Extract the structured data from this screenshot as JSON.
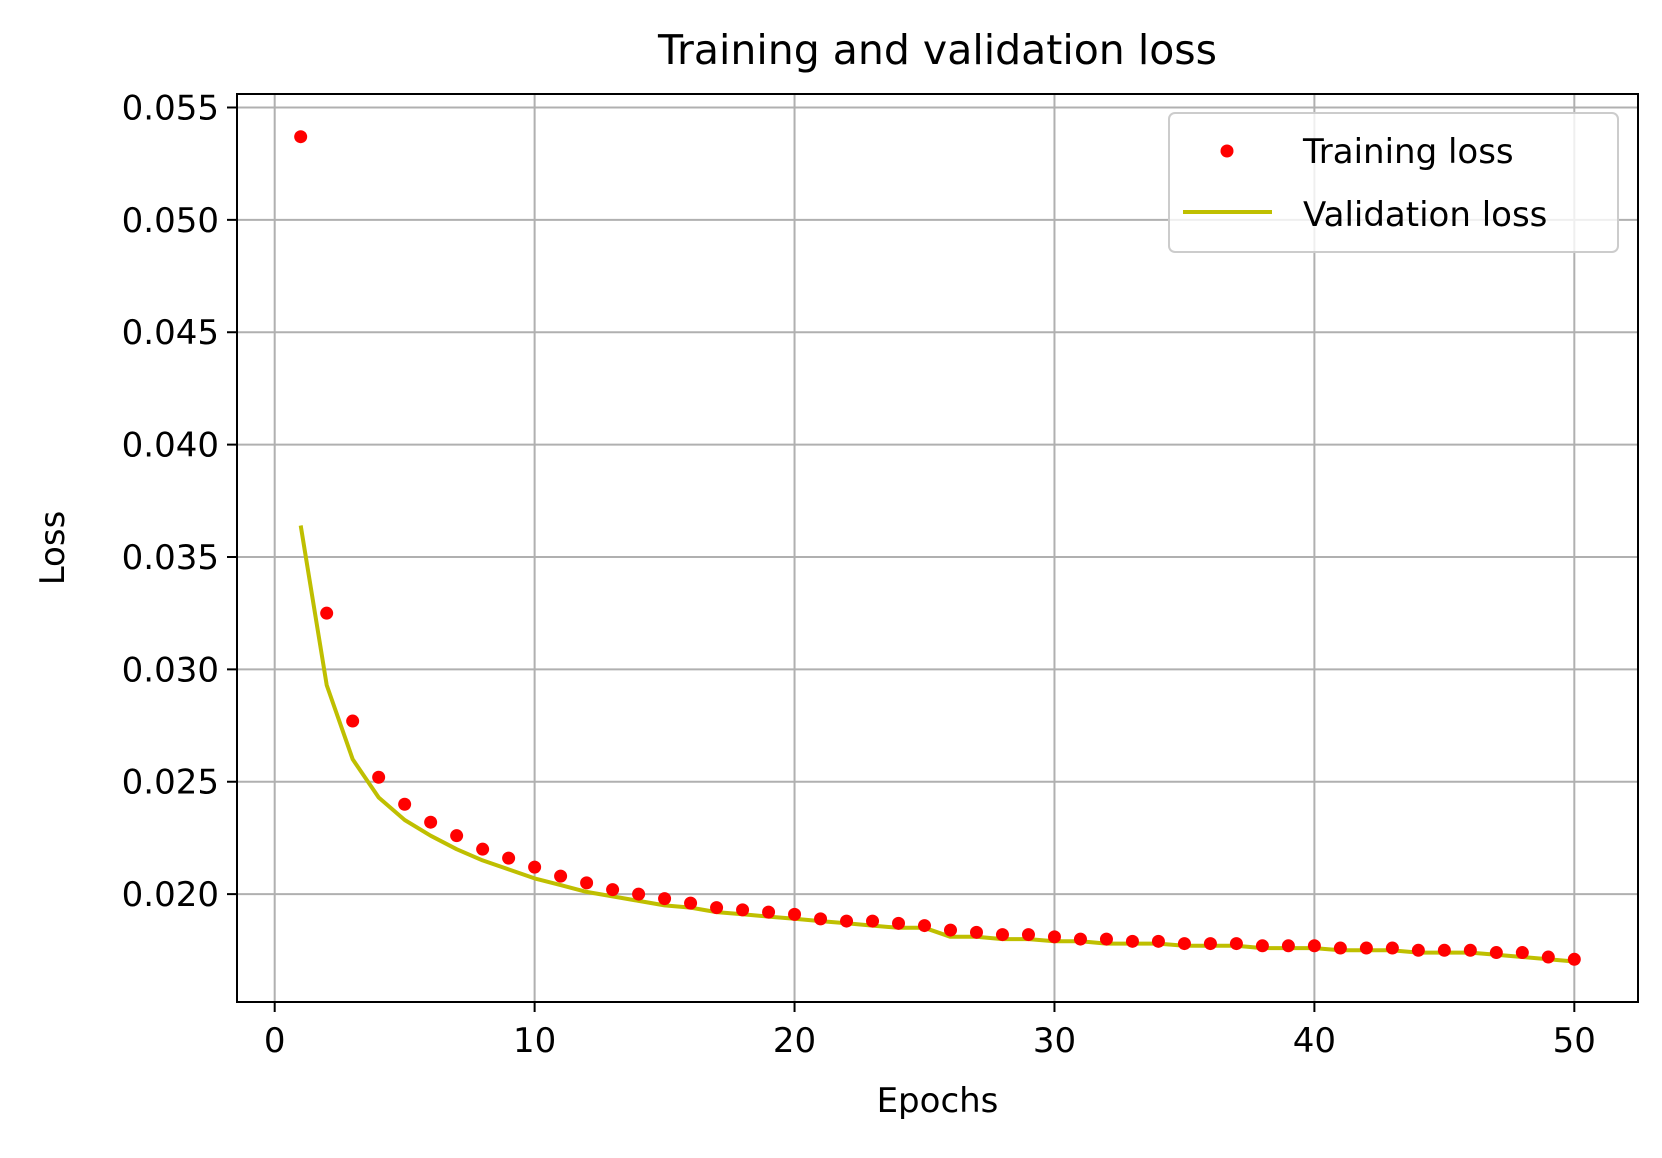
{
  "chart_data": {
    "type": "line",
    "title": "Training and validation loss",
    "xlabel": "Epochs",
    "ylabel": "Loss",
    "xlim": [
      -1.45,
      52.45
    ],
    "ylim": [
      0.0152,
      0.0556
    ],
    "xticks": [
      0,
      10,
      20,
      30,
      40,
      50
    ],
    "xtick_labels": [
      "0",
      "10",
      "20",
      "30",
      "40",
      "50"
    ],
    "yticks": [
      0.02,
      0.025,
      0.03,
      0.035,
      0.04,
      0.045,
      0.05,
      0.055
    ],
    "ytick_labels": [
      "0.020",
      "0.025",
      "0.030",
      "0.035",
      "0.040",
      "0.045",
      "0.050",
      "0.055"
    ],
    "grid": true,
    "legend_position": "top-right",
    "x": [
      1,
      2,
      3,
      4,
      5,
      6,
      7,
      8,
      9,
      10,
      11,
      12,
      13,
      14,
      15,
      16,
      17,
      18,
      19,
      20,
      21,
      22,
      23,
      24,
      25,
      26,
      27,
      28,
      29,
      30,
      31,
      32,
      33,
      34,
      35,
      36,
      37,
      38,
      39,
      40,
      41,
      42,
      43,
      44,
      45,
      46,
      47,
      48,
      49,
      50
    ],
    "series": [
      {
        "name": "Training loss",
        "style": "dots",
        "color": "#ff0000",
        "values": [
          0.0537,
          0.0325,
          0.0277,
          0.0252,
          0.024,
          0.0232,
          0.0226,
          0.022,
          0.0216,
          0.0212,
          0.0208,
          0.0205,
          0.0202,
          0.02,
          0.0198,
          0.0196,
          0.0194,
          0.0193,
          0.0192,
          0.0191,
          0.0189,
          0.0188,
          0.0188,
          0.0187,
          0.0186,
          0.0184,
          0.0183,
          0.0182,
          0.0182,
          0.0181,
          0.018,
          0.018,
          0.0179,
          0.0179,
          0.0178,
          0.0178,
          0.0178,
          0.0177,
          0.0177,
          0.0177,
          0.0176,
          0.0176,
          0.0176,
          0.0175,
          0.0175,
          0.0175,
          0.0174,
          0.0174,
          0.0172,
          0.0171
        ]
      },
      {
        "name": "Validation loss",
        "style": "line",
        "color": "#bfbf00",
        "values": [
          0.0364,
          0.0293,
          0.026,
          0.0243,
          0.0233,
          0.0226,
          0.022,
          0.0215,
          0.0211,
          0.0207,
          0.0204,
          0.0201,
          0.0199,
          0.0197,
          0.0195,
          0.0194,
          0.0192,
          0.0191,
          0.019,
          0.0189,
          0.0188,
          0.0187,
          0.0186,
          0.0185,
          0.0185,
          0.0181,
          0.0181,
          0.018,
          0.018,
          0.0179,
          0.0179,
          0.0178,
          0.0178,
          0.0178,
          0.0177,
          0.0177,
          0.0177,
          0.0176,
          0.0176,
          0.0176,
          0.0175,
          0.0175,
          0.0175,
          0.0174,
          0.0174,
          0.0174,
          0.0173,
          0.0172,
          0.0171,
          0.017
        ]
      }
    ]
  }
}
